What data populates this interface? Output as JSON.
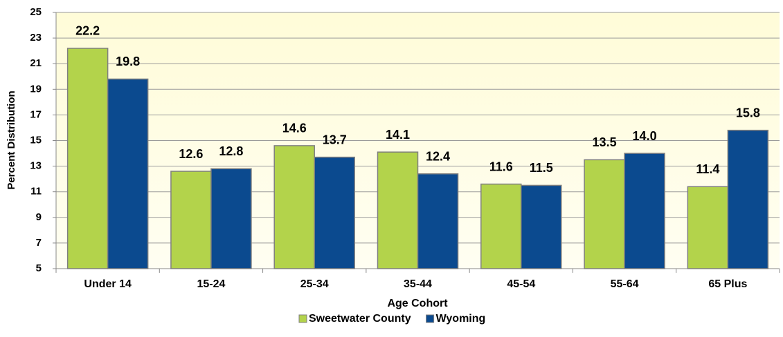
{
  "chart_data": {
    "type": "bar",
    "x_label": "Age Cohort",
    "y_label": "Percent Distribution",
    "categories": [
      "Under 14",
      "15-24",
      "25-34",
      "35-44",
      "45-54",
      "55-64",
      "65 Plus"
    ],
    "series": [
      {
        "name": "Sweetwater County",
        "color": "#b3d34b",
        "values": [
          22.2,
          12.6,
          14.6,
          14.1,
          11.6,
          13.5,
          11.4
        ],
        "value_labels": [
          "22.2",
          "12.6",
          "14.6",
          "14.1",
          "11.6",
          "13.5",
          "11.4"
        ]
      },
      {
        "name": "Wyoming",
        "color": "#0b4a8f",
        "values": [
          19.8,
          12.8,
          13.7,
          12.4,
          11.5,
          14.0,
          15.8
        ],
        "value_labels": [
          "19.8",
          "12.8",
          "13.7",
          "12.4",
          "11.5",
          "14.0",
          "15.8"
        ]
      }
    ],
    "ylim": [
      5,
      25
    ],
    "yticks": [
      5,
      7,
      9,
      11,
      13,
      15,
      17,
      19,
      21,
      23,
      25
    ],
    "grid": true
  }
}
